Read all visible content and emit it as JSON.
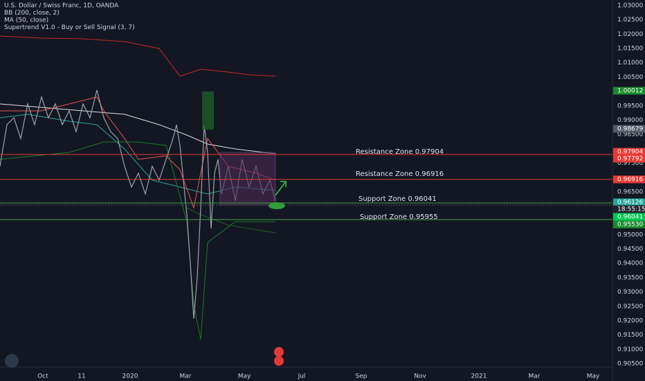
{
  "legend": [
    "U.S. Dollar / Swiss Franc, 1D, OANDA",
    "BB (200, close, 2)",
    "MA (50, close)",
    "Supertrend V1.0 - Buy or Sell Signal (3, 7)"
  ],
  "zones": [
    "Resistance Zone 0.97904",
    "Resistance Zone 0.96916",
    "Support Zone 0.96041",
    "Support Zone 0.95955"
  ],
  "price_axis": [
    "1.03000",
    "1.02500",
    "1.02000",
    "1.01500",
    "1.01000",
    "1.00500",
    "0.99500",
    "0.99000",
    "0.98500",
    "0.97500",
    "0.96500",
    "0.95000",
    "0.94500",
    "0.94000",
    "0.93500",
    "0.93000",
    "0.92500",
    "0.92000",
    "0.91500",
    "0.91000",
    "0.90500"
  ],
  "price_tags": [
    "1.00012",
    "0.98679",
    "0.97904",
    "0.97792",
    "0.96916",
    "0.96126",
    "18:55:15",
    "0.96041",
    "0.95530"
  ],
  "time_axis": [
    "Oct",
    "11",
    "2020",
    "Mar",
    "May",
    "Jul",
    "Sep",
    "Nov",
    "2021",
    "Mar",
    "May"
  ]
}
